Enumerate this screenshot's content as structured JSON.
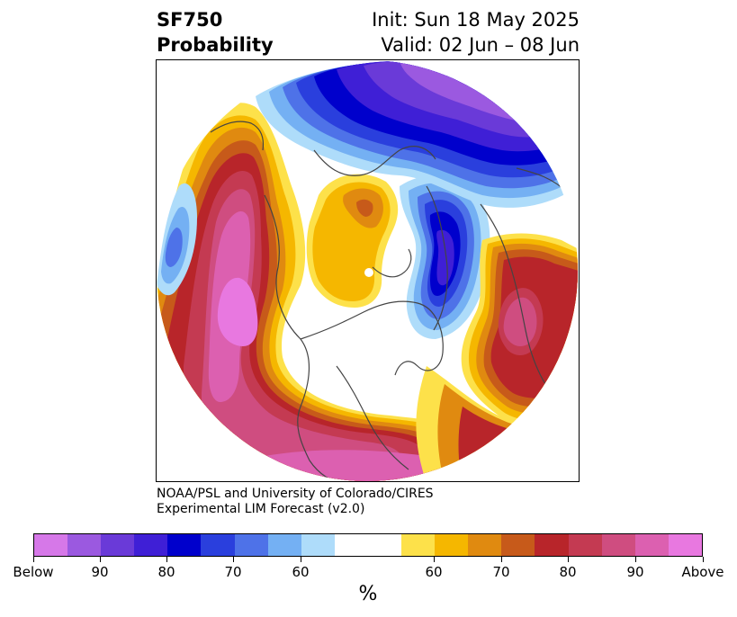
{
  "title": {
    "left_line1": "SF750",
    "left_line2": "Probability",
    "right_line1": "Init: Sun 18 May 2025",
    "right_line2": "Valid: 02 Jun – 08 Jun"
  },
  "credit": {
    "line1": "NOAA/PSL and University of Colorado/CIRES",
    "line2": "Experimental LIM Forecast (v2.0)"
  },
  "colorbar": {
    "unit": "%",
    "colors": [
      "#d678e8",
      "#9b59e0",
      "#6a3ad8",
      "#3f1fd6",
      "#0000cc",
      "#2a3fdd",
      "#4e72e8",
      "#74b0f3",
      "#aedcfa",
      "#ffffff",
      "#fde14a",
      "#f5b700",
      "#e08a10",
      "#c75a1a",
      "#b8252a",
      "#c43a52",
      "#cf4d80",
      "#dc60b0",
      "#e878e0"
    ],
    "tick_labels": [
      "Below",
      "90",
      "80",
      "70",
      "60",
      "60",
      "70",
      "80",
      "90",
      "Above"
    ]
  },
  "map": {
    "colors": {
      "above_far": "#e878e0",
      "above_90": "#dc60b0",
      "above_85": "#cf4d80",
      "above_80": "#c43a52",
      "above_75": "#b8252a",
      "above_70": "#c75a1a",
      "above_65": "#e08a10",
      "above_60": "#f5b700",
      "above_55": "#fde14a",
      "below_55": "#aedcfa",
      "below_60": "#74b0f3",
      "below_65": "#4e72e8",
      "below_70": "#2a3fdd",
      "below_75": "#0000cc",
      "below_80": "#3f1fd6",
      "below_85": "#6a3ad8",
      "below_90": "#9b59e0",
      "below_far": "#d678e8",
      "coastline": "#444444"
    }
  }
}
